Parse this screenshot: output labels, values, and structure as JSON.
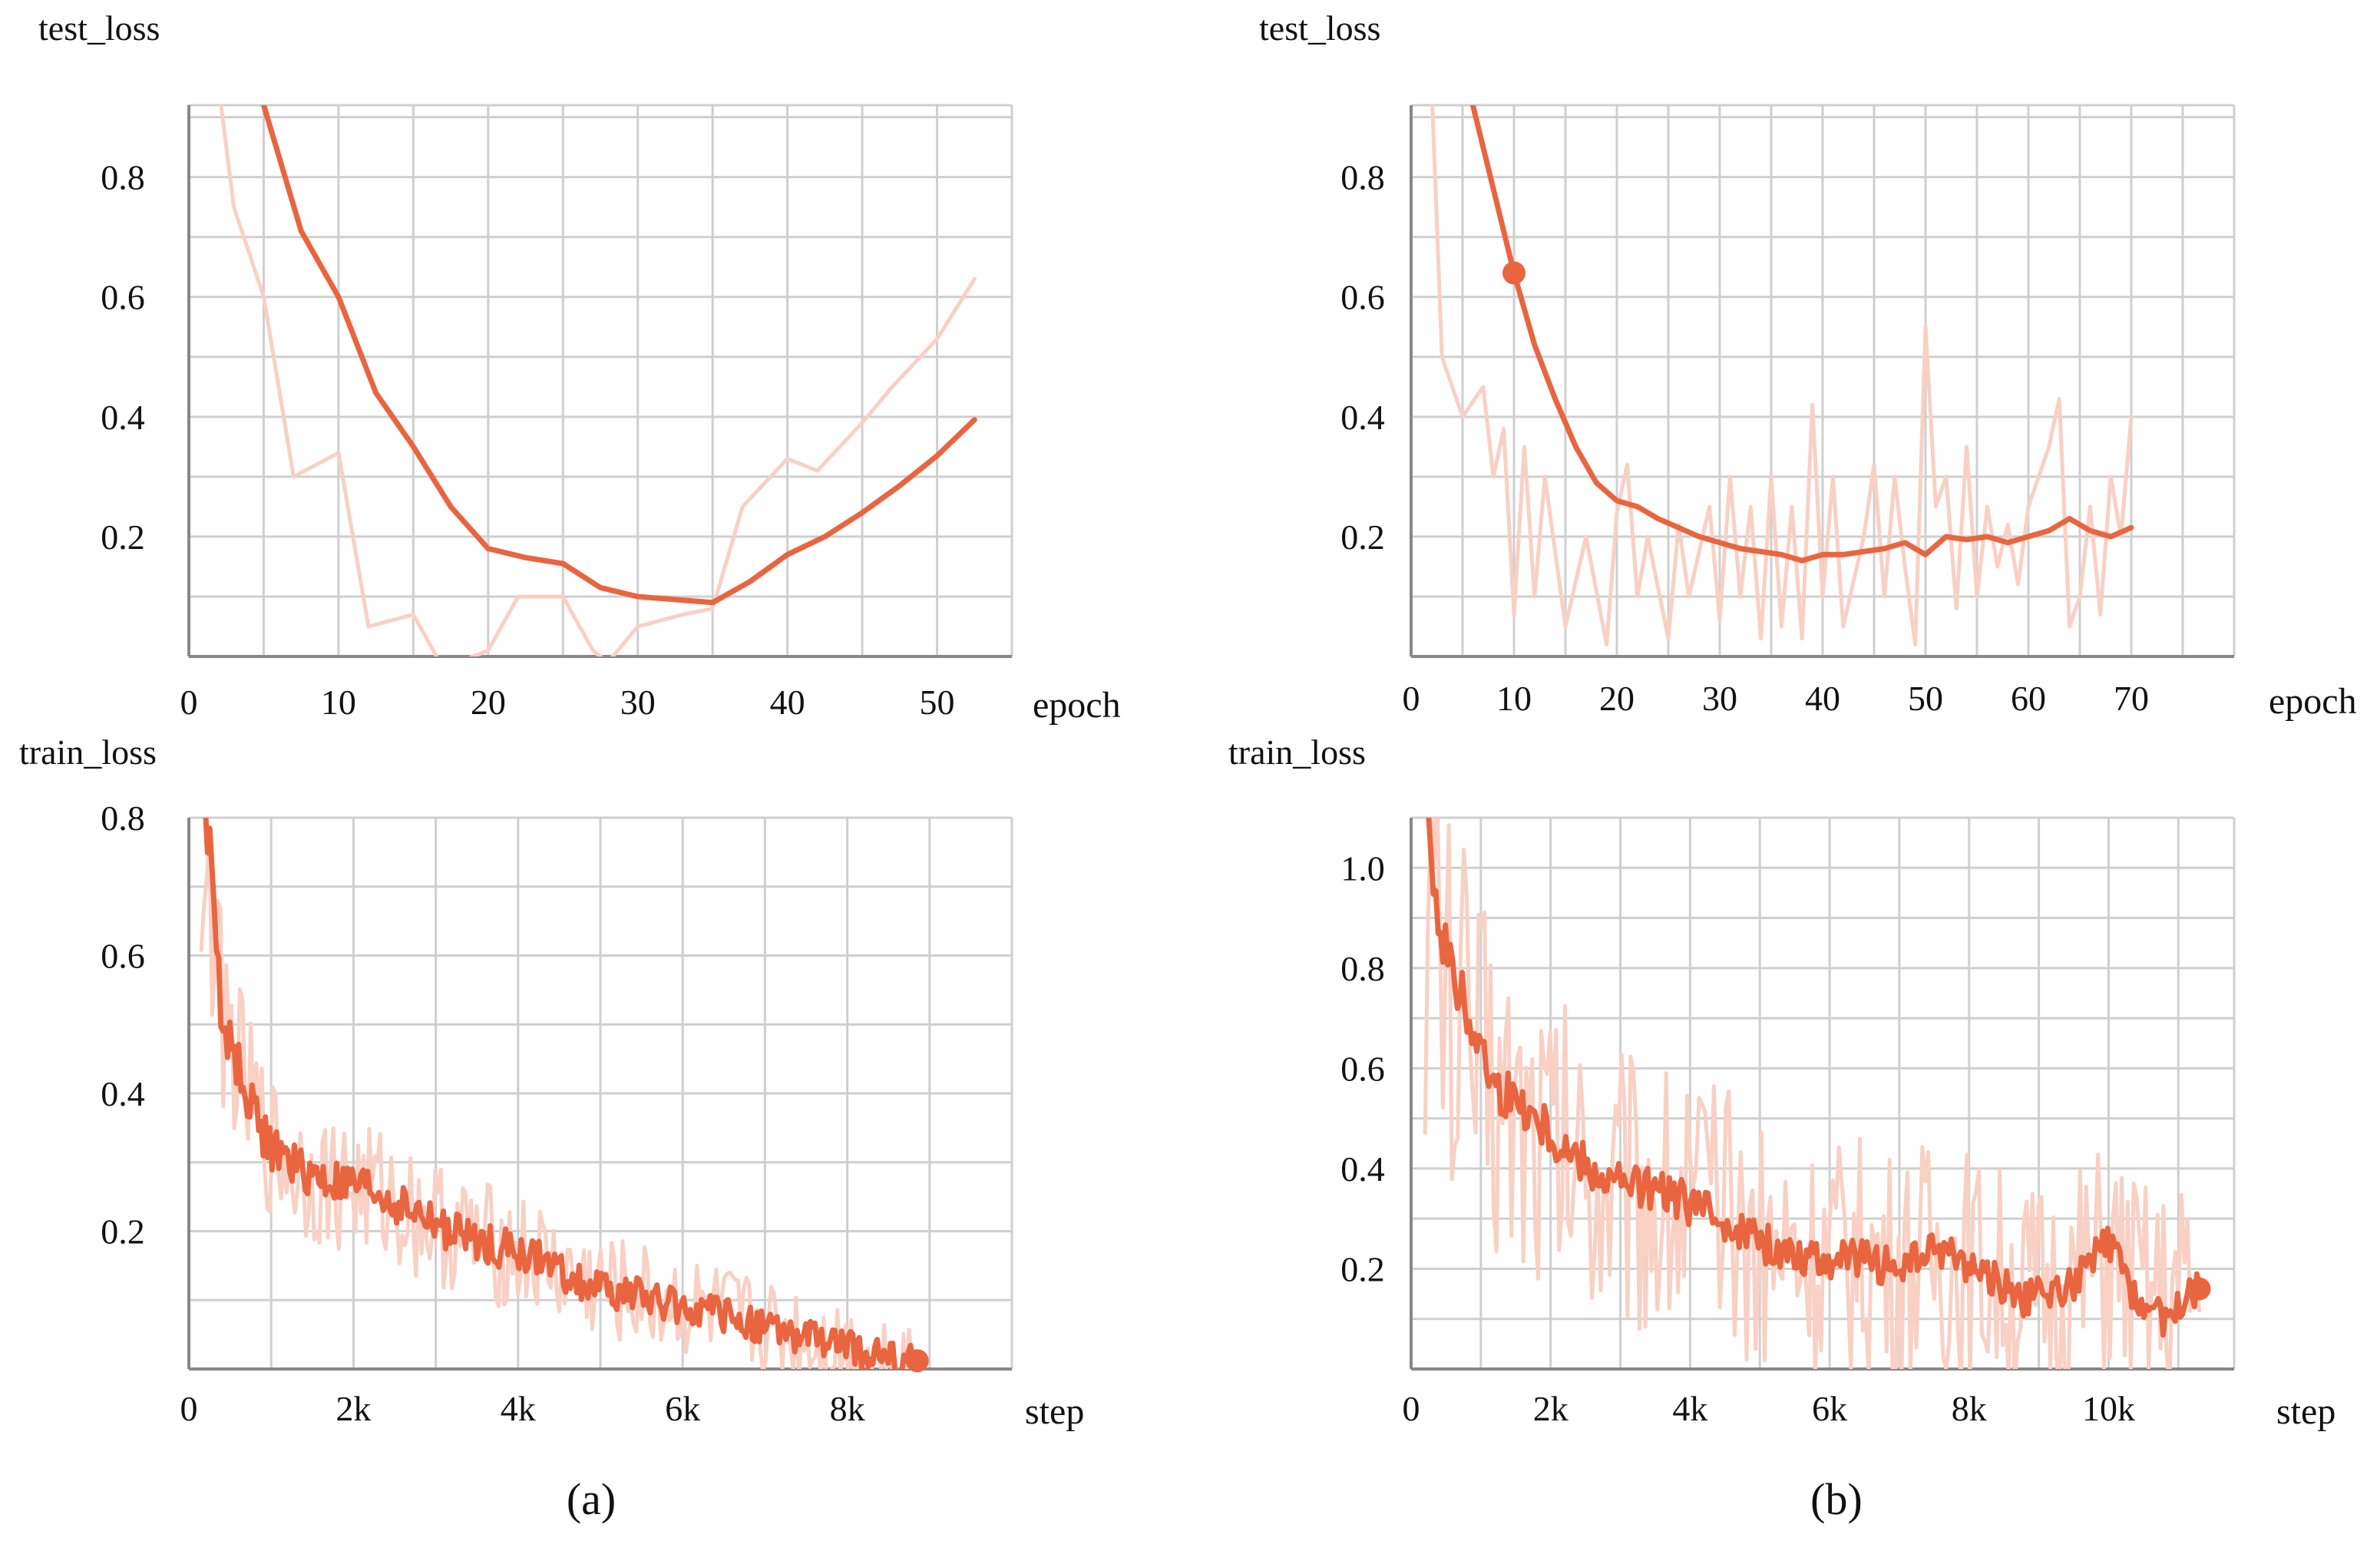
{
  "colors": {
    "smoothed": "#e9653f",
    "raw": "#f9d0c4",
    "grid": "#cfcfcf",
    "axis": "#888888"
  },
  "captions": {
    "a": "(a)",
    "b": "(b)"
  },
  "chart_data": [
    {
      "id": "a-test",
      "type": "line",
      "ylabel": "test_loss",
      "xlabel": "epoch",
      "xlim": [
        0,
        55
      ],
      "ylim": [
        0,
        0.92
      ],
      "xticks": [
        0,
        10,
        20,
        30,
        40,
        50
      ],
      "xtick_labels": [
        "0",
        "10",
        "20",
        "30",
        "40",
        "50"
      ],
      "yticks": [
        0.2,
        0.4,
        0.6,
        0.8
      ],
      "ytick_labels": [
        "0.2",
        "0.4",
        "0.6",
        "0.8"
      ],
      "series": [
        {
          "name": "raw",
          "style": "raw",
          "x": [
            2,
            3,
            5,
            7,
            10,
            12,
            15,
            17,
            20,
            22,
            25,
            27,
            28,
            30,
            33,
            35,
            37,
            40,
            42,
            45,
            47,
            50,
            52.5
          ],
          "y": [
            0.95,
            0.75,
            0.6,
            0.3,
            0.34,
            0.05,
            0.07,
            -0.02,
            0.01,
            0.1,
            0.1,
            0.01,
            -0.01,
            0.05,
            0.07,
            0.08,
            0.25,
            0.33,
            0.31,
            0.39,
            0.45,
            0.53,
            0.63
          ]
        },
        {
          "name": "smoothed",
          "style": "smooth",
          "x": [
            5,
            7.5,
            10,
            12.5,
            15,
            17.5,
            20,
            22.5,
            25,
            27.5,
            30,
            32.5,
            35,
            37.5,
            40,
            42.5,
            45,
            47.5,
            50,
            52.5
          ],
          "y": [
            0.92,
            0.71,
            0.6,
            0.44,
            0.35,
            0.25,
            0.18,
            0.165,
            0.155,
            0.115,
            0.1,
            0.095,
            0.09,
            0.125,
            0.17,
            0.2,
            0.24,
            0.285,
            0.335,
            0.395
          ]
        }
      ]
    },
    {
      "id": "b-test",
      "type": "line",
      "ylabel": "test_loss",
      "xlabel": "epoch",
      "xlim": [
        0,
        80
      ],
      "ylim": [
        0,
        0.92
      ],
      "xticks": [
        0,
        10,
        20,
        30,
        40,
        50,
        60,
        70
      ],
      "xtick_labels": [
        "0",
        "10",
        "20",
        "30",
        "40",
        "50",
        "60",
        "70"
      ],
      "yticks": [
        0.2,
        0.4,
        0.6,
        0.8
      ],
      "ytick_labels": [
        "0.2",
        "0.4",
        "0.6",
        "0.8"
      ],
      "marker": {
        "x": 10,
        "y": 0.64
      },
      "series": [
        {
          "name": "raw",
          "style": "raw",
          "x": [
            2,
            3,
            5,
            7,
            8,
            9,
            10,
            11,
            12,
            13,
            15,
            17,
            19,
            20,
            21,
            22,
            23,
            25,
            26,
            27,
            29,
            30,
            31,
            32,
            33,
            34,
            35,
            36,
            37,
            38,
            39,
            40,
            41,
            42,
            44,
            45,
            46,
            47,
            48,
            49,
            50,
            51,
            52,
            53,
            54,
            55,
            56,
            57,
            58,
            59,
            60,
            61,
            62,
            63,
            64,
            65,
            66,
            67,
            68,
            69,
            70
          ],
          "y": [
            0.95,
            0.5,
            0.4,
            0.45,
            0.3,
            0.38,
            0.07,
            0.35,
            0.1,
            0.3,
            0.05,
            0.2,
            0.02,
            0.24,
            0.32,
            0.1,
            0.2,
            0.03,
            0.22,
            0.1,
            0.25,
            0.06,
            0.3,
            0.1,
            0.25,
            0.03,
            0.3,
            0.05,
            0.25,
            0.03,
            0.42,
            0.1,
            0.3,
            0.05,
            0.2,
            0.32,
            0.1,
            0.3,
            0.15,
            0.02,
            0.55,
            0.25,
            0.3,
            0.08,
            0.35,
            0.1,
            0.25,
            0.15,
            0.22,
            0.12,
            0.25,
            0.3,
            0.35,
            0.43,
            0.05,
            0.1,
            0.25,
            0.07,
            0.3,
            0.2,
            0.4
          ]
        },
        {
          "name": "smoothed",
          "style": "smooth",
          "x": [
            6,
            8,
            10,
            12,
            14,
            16,
            18,
            20,
            22,
            24,
            26,
            28,
            30,
            32,
            34,
            36,
            38,
            40,
            42,
            44,
            46,
            48,
            50,
            52,
            54,
            56,
            58,
            60,
            62,
            64,
            66,
            68,
            70
          ],
          "y": [
            0.92,
            0.78,
            0.64,
            0.52,
            0.43,
            0.35,
            0.29,
            0.26,
            0.25,
            0.23,
            0.215,
            0.2,
            0.19,
            0.18,
            0.175,
            0.17,
            0.16,
            0.17,
            0.17,
            0.175,
            0.18,
            0.19,
            0.17,
            0.2,
            0.195,
            0.2,
            0.19,
            0.2,
            0.21,
            0.23,
            0.21,
            0.2,
            0.215
          ]
        }
      ]
    },
    {
      "id": "a-train",
      "type": "line",
      "ylabel": "train_loss",
      "xlabel": "step",
      "xlim": [
        0,
        10000
      ],
      "ylim": [
        0,
        0.8
      ],
      "xticks": [
        0,
        2000,
        4000,
        6000,
        8000
      ],
      "xtick_labels": [
        "0",
        "2k",
        "4k",
        "6k",
        "8k"
      ],
      "yticks": [
        0.2,
        0.4,
        0.6,
        0.8
      ],
      "ytick_labels": [
        "0.2",
        "0.4",
        "0.6",
        "0.8"
      ],
      "marker": {
        "x": 8850,
        "y": 0.012
      },
      "series": [
        {
          "name": "raw",
          "style": "raw",
          "noise": 0.13,
          "x": [
            150,
            250,
            400,
            600,
            800,
            1000,
            1300,
            1700,
            2200,
            2700,
            3200,
            3700,
            4200,
            4700,
            5200,
            5700,
            6200,
            6700,
            7200,
            7700,
            8200,
            8600,
            8850
          ],
          "y": [
            0.72,
            0.68,
            0.52,
            0.44,
            0.37,
            0.32,
            0.29,
            0.27,
            0.26,
            0.23,
            0.2,
            0.18,
            0.16,
            0.13,
            0.11,
            0.1,
            0.085,
            0.07,
            0.055,
            0.04,
            0.025,
            0.015,
            0.01
          ]
        },
        {
          "name": "smoothed",
          "style": "smooth",
          "noise": 0.04,
          "x": [
            200,
            300,
            400,
            600,
            800,
            1000,
            1300,
            1700,
            2200,
            2700,
            3200,
            3700,
            4200,
            4700,
            5200,
            5700,
            6200,
            6700,
            7200,
            7700,
            8200,
            8600,
            8850
          ],
          "y": [
            0.8,
            0.7,
            0.5,
            0.44,
            0.37,
            0.32,
            0.29,
            0.27,
            0.26,
            0.23,
            0.2,
            0.18,
            0.16,
            0.13,
            0.11,
            0.1,
            0.085,
            0.07,
            0.055,
            0.04,
            0.025,
            0.015,
            0.01
          ]
        }
      ]
    },
    {
      "id": "b-train",
      "type": "line",
      "ylabel": "train_loss",
      "xlabel": "step",
      "xlim": [
        0,
        11800
      ],
      "ylim": [
        0,
        1.1
      ],
      "xticks": [
        0,
        2000,
        4000,
        6000,
        8000,
        10000
      ],
      "xtick_labels": [
        "0",
        "2k",
        "4k",
        "6k",
        "8k",
        "10k"
      ],
      "yticks": [
        0.2,
        0.4,
        0.6,
        0.8,
        1.0
      ],
      "ytick_labels": [
        "0.2",
        "0.4",
        "0.6",
        "0.8",
        "1.0"
      ],
      "marker": {
        "x": 11300,
        "y": 0.16
      },
      "series": [
        {
          "name": "raw",
          "style": "raw",
          "noise": 0.34,
          "x": [
            200,
            500,
            800,
            1200,
            1700,
            2200,
            2800,
            3400,
            4000,
            4600,
            5200,
            5800,
            6400,
            7000,
            7600,
            8200,
            8800,
            9400,
            10000,
            10600,
            11300
          ],
          "y": [
            0.95,
            0.75,
            0.65,
            0.56,
            0.5,
            0.44,
            0.38,
            0.36,
            0.33,
            0.29,
            0.24,
            0.22,
            0.22,
            0.2,
            0.22,
            0.19,
            0.15,
            0.16,
            0.22,
            0.14,
            0.16
          ]
        },
        {
          "name": "smoothed",
          "style": "smooth",
          "noise": 0.05,
          "x": [
            250,
            400,
            600,
            900,
            1200,
            1700,
            2200,
            2800,
            3400,
            4000,
            4600,
            5200,
            5800,
            6400,
            7000,
            7600,
            8200,
            8800,
            9400,
            10000,
            10400,
            10800,
            11300
          ],
          "y": [
            1.1,
            0.9,
            0.78,
            0.68,
            0.56,
            0.52,
            0.44,
            0.38,
            0.36,
            0.33,
            0.29,
            0.24,
            0.22,
            0.22,
            0.2,
            0.24,
            0.19,
            0.14,
            0.16,
            0.25,
            0.14,
            0.1,
            0.16
          ]
        }
      ]
    }
  ]
}
